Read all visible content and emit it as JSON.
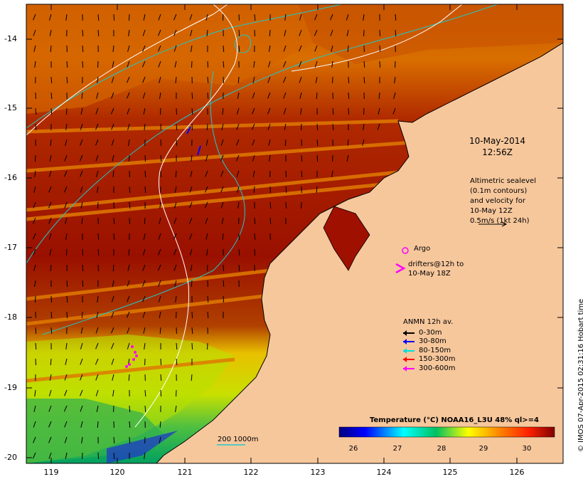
{
  "map": {
    "y_ticks": [
      "-14",
      "-15",
      "-16",
      "-17",
      "-18",
      "-19",
      "-20"
    ],
    "x_ticks": [
      "119",
      "120",
      "121",
      "122",
      "123",
      "124",
      "125",
      "126"
    ],
    "date_line1": "10-May-2014",
    "date_line2": "12:56Z",
    "altimetry": [
      "Altimetric sealevel",
      "(0.1m contours)",
      "and velocity for",
      "10-May 12Z",
      "0.5m/s (1kt 24h)"
    ],
    "argo_label": "Argo",
    "drifters_line1": "drifters@12h to",
    "drifters_line2": "10-May 18Z",
    "anmn": {
      "title": "ANMN 12h av.",
      "items": [
        {
          "label": "0-30m",
          "color": "#000000"
        },
        {
          "label": "30-80m",
          "color": "#0000ff"
        },
        {
          "label": "80-150m",
          "color": "#00dddd"
        },
        {
          "label": "150-300m",
          "color": "#ff0000"
        },
        {
          "label": "300-600m",
          "color": "#ff00ff"
        }
      ]
    },
    "colorbar": {
      "title": "Temperature (°C) NOAA16_L3U 48% ql>=4",
      "ticks": [
        "26",
        "27",
        "28",
        "29",
        "30"
      ]
    },
    "scale_label": "200  1000m",
    "credit": "© IMOS 07-Apr-2015 02:31:16 Hobart time",
    "colors": {
      "land": "#f7c79c",
      "sea_warm": "#a01000",
      "sea_mid": "#e07a00",
      "contour": "#20c8c8",
      "isobath": "#ffffff"
    }
  }
}
